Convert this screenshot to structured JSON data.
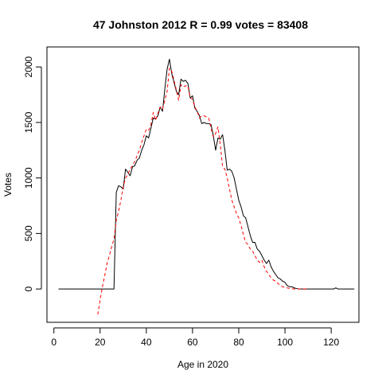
{
  "chart_data": {
    "type": "line",
    "title": "47 Johnston 2012 R = 0.99 votes = 83408",
    "xlabel": "Age in 2020",
    "ylabel": "Votes",
    "xlim": [
      -3,
      132
    ],
    "ylim": [
      -300,
      2180
    ],
    "xticks": [
      0,
      20,
      40,
      60,
      80,
      100,
      120
    ],
    "yticks": [
      0,
      500,
      1000,
      1500,
      2000
    ],
    "grid": false,
    "legend": "none",
    "series": [
      {
        "style": "solid",
        "color": "#000000",
        "x": [
          2,
          3,
          4,
          5,
          6,
          7,
          8,
          9,
          10,
          11,
          12,
          13,
          14,
          15,
          16,
          17,
          18,
          19,
          20,
          21,
          22,
          23,
          24,
          25,
          26,
          27,
          28,
          29,
          30,
          31,
          32,
          33,
          34,
          35,
          36,
          37,
          38,
          39,
          40,
          41,
          42,
          43,
          44,
          45,
          46,
          47,
          48,
          49,
          50,
          51,
          52,
          53,
          54,
          55,
          56,
          57,
          58,
          59,
          60,
          61,
          62,
          63,
          64,
          65,
          66,
          67,
          68,
          69,
          70,
          71,
          72,
          73,
          74,
          75,
          76,
          77,
          78,
          79,
          80,
          81,
          82,
          83,
          84,
          85,
          86,
          87,
          88,
          89,
          90,
          91,
          92,
          93,
          94,
          95,
          96,
          97,
          98,
          99,
          100,
          101,
          102,
          103,
          104,
          105,
          106,
          107,
          108,
          109,
          110,
          111,
          112,
          113,
          114,
          115,
          116,
          117,
          118,
          119,
          120,
          121,
          122,
          123,
          124,
          125,
          126,
          127,
          128,
          129,
          130
        ],
        "y": [
          0,
          0,
          0,
          0,
          0,
          0,
          0,
          0,
          0,
          0,
          0,
          0,
          0,
          0,
          0,
          0,
          0,
          0,
          0,
          0,
          0,
          0,
          0,
          0,
          0,
          870,
          930,
          920,
          900,
          1080,
          1050,
          1020,
          1100,
          1110,
          1160,
          1180,
          1250,
          1300,
          1380,
          1360,
          1450,
          1540,
          1530,
          1560,
          1640,
          1600,
          1800,
          1980,
          2070,
          1940,
          1860,
          1780,
          1750,
          1890,
          1870,
          1880,
          1850,
          1720,
          1740,
          1630,
          1600,
          1560,
          1490,
          1500,
          1490,
          1490,
          1480,
          1380,
          1250,
          1360,
          1350,
          1390,
          1250,
          1070,
          1080,
          1060,
          1000,
          900,
          800,
          740,
          660,
          640,
          560,
          480,
          420,
          420,
          360,
          340,
          300,
          260,
          230,
          260,
          200,
          160,
          130,
          100,
          90,
          70,
          60,
          30,
          20,
          20,
          10,
          5,
          0,
          0,
          0,
          0,
          0,
          0,
          0,
          0,
          0,
          0,
          0,
          0,
          0,
          0,
          0,
          0,
          10,
          0,
          0,
          0,
          0,
          0,
          0,
          0,
          0
        ]
      },
      {
        "style": "dashed",
        "color": "#ff0000",
        "x": [
          19,
          20,
          21,
          22,
          23,
          24,
          25,
          26,
          27,
          28,
          29,
          30,
          31,
          32,
          33,
          34,
          35,
          36,
          37,
          38,
          39,
          40,
          41,
          42,
          43,
          44,
          45,
          46,
          47,
          48,
          49,
          50,
          51,
          52,
          53,
          54,
          55,
          56,
          57,
          58,
          59,
          60,
          61,
          62,
          63,
          64,
          65,
          66,
          67,
          68,
          69,
          70,
          71,
          72,
          73,
          74,
          75,
          76,
          77,
          78,
          79,
          80,
          81,
          82,
          83,
          84,
          85,
          86,
          87,
          88,
          89,
          90,
          91,
          92,
          93,
          94,
          95,
          96,
          97,
          98,
          99,
          100,
          101,
          102,
          103,
          104,
          105,
          106,
          107,
          108,
          109,
          110
        ],
        "y": [
          -230,
          -100,
          20,
          120,
          230,
          300,
          380,
          450,
          620,
          700,
          800,
          920,
          1000,
          1030,
          1080,
          1110,
          1150,
          1200,
          1250,
          1320,
          1380,
          1440,
          1430,
          1480,
          1590,
          1520,
          1580,
          1640,
          1620,
          1700,
          1780,
          1990,
          1960,
          1880,
          1790,
          1700,
          1840,
          1820,
          1830,
          1830,
          1720,
          1710,
          1640,
          1600,
          1540,
          1560,
          1560,
          1550,
          1540,
          1450,
          1370,
          1400,
          1460,
          1300,
          1100,
          1080,
          1000,
          900,
          800,
          740,
          680,
          640,
          570,
          490,
          420,
          400,
          360,
          340,
          300,
          260,
          240,
          260,
          200,
          160,
          130,
          100,
          80,
          70,
          50,
          30,
          20,
          15,
          10,
          5,
          2,
          0,
          0,
          0,
          0,
          0,
          0,
          0
        ]
      }
    ]
  }
}
